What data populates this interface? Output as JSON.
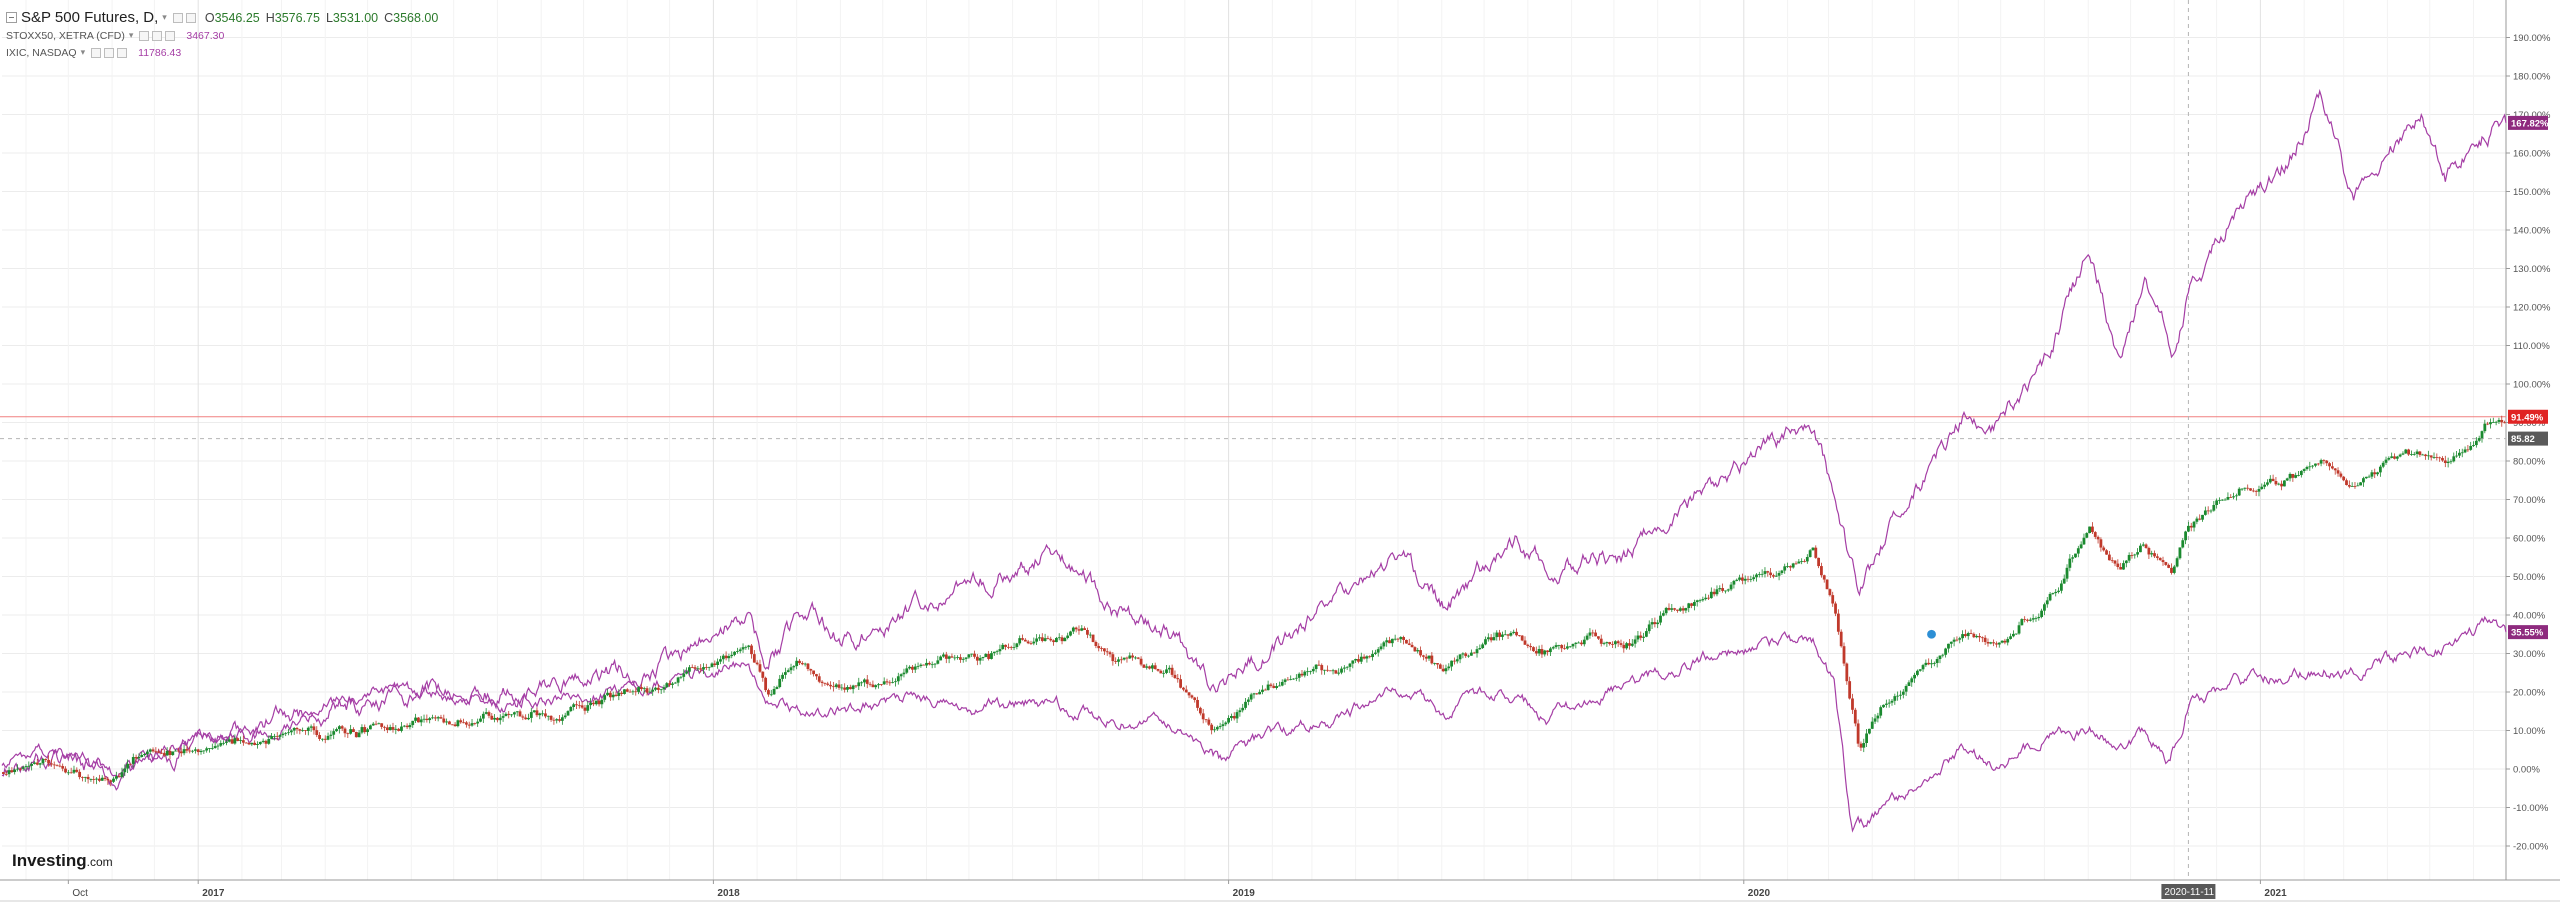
{
  "legend": {
    "main": {
      "name": "S&P 500 Futures, D,",
      "open_key": "O",
      "open": "3546.25",
      "high_key": "H",
      "high": "3576.75",
      "low_key": "L",
      "low": "3531.00",
      "close_key": "C",
      "close": "3568.00"
    },
    "compare": [
      {
        "name": "STOXX50, XETRA (CFD)",
        "value": "3467.30"
      },
      {
        "name": "IXIC, NASDAQ",
        "value": "11786.43"
      }
    ]
  },
  "brand": {
    "name": "Investing",
    "suffix": ".com"
  },
  "colors": {
    "candle_up": "#1b8a2f",
    "candle_down": "#c0392b",
    "compare_line": "#a53ea5",
    "reference_line": "#f08080",
    "grid": "#ececec",
    "axis": "#999999",
    "crosshair_label": "#5a5a5a"
  },
  "chart_data": {
    "type": "line",
    "ylabel": "",
    "y_scale": "percent",
    "ylim": [
      -25,
      197
    ],
    "y_ticks": [
      "-20.00%",
      "-10.00%",
      "0.00%",
      "10.00%",
      "20.00%",
      "30.00%",
      "40.00%",
      "50.00%",
      "60.00%",
      "70.00%",
      "80.00%",
      "90.00%",
      "100.00%",
      "110.00%",
      "120.00%",
      "130.00%",
      "140.00%",
      "150.00%",
      "160.00%",
      "170.00%",
      "180.00%",
      "190.00%"
    ],
    "x_ticks": [
      {
        "label": "Oct",
        "date": "2016-10-01"
      },
      {
        "label": "2017",
        "date": "2017-01-01"
      },
      {
        "label": "2018",
        "date": "2018-01-01"
      },
      {
        "label": "2019",
        "date": "2019-01-01"
      },
      {
        "label": "2020",
        "date": "2020-01-01"
      },
      {
        "label": "2021",
        "date": "2021-01-01"
      }
    ],
    "x_range": [
      "2016-08-15",
      "2021-06-24"
    ],
    "reference_line": {
      "value": 91.49,
      "label": "91.49%"
    },
    "crosshair": {
      "date": "2020-11-11",
      "date_label": "2020-11-11",
      "value": 85.82,
      "value_label": "85.82"
    },
    "series": [
      {
        "name": "S&P 500 Futures",
        "style": "candles",
        "last_label": "91.49%",
        "points": [
          [
            "2016-08-15",
            0
          ],
          [
            "2016-09-15",
            2
          ],
          [
            "2016-10-15",
            -2
          ],
          [
            "2016-11-05",
            -3
          ],
          [
            "2016-11-20",
            3
          ],
          [
            "2016-12-15",
            5
          ],
          [
            "2017-01-15",
            6
          ],
          [
            "2017-03-01",
            9
          ],
          [
            "2017-04-15",
            9
          ],
          [
            "2017-06-01",
            12
          ],
          [
            "2017-07-15",
            13
          ],
          [
            "2017-09-01",
            14
          ],
          [
            "2017-10-15",
            18
          ],
          [
            "2017-12-01",
            22
          ],
          [
            "2018-01-26",
            33
          ],
          [
            "2018-02-08",
            20
          ],
          [
            "2018-02-28",
            28
          ],
          [
            "2018-04-02",
            20
          ],
          [
            "2018-05-15",
            24
          ],
          [
            "2018-06-15",
            28
          ],
          [
            "2018-07-15",
            30
          ],
          [
            "2018-08-15",
            33
          ],
          [
            "2018-09-21",
            36
          ],
          [
            "2018-10-11",
            28
          ],
          [
            "2018-11-15",
            27
          ],
          [
            "2018-12-24",
            10
          ],
          [
            "2019-01-15",
            18
          ],
          [
            "2019-02-15",
            24
          ],
          [
            "2019-03-15",
            26
          ],
          [
            "2019-04-30",
            33
          ],
          [
            "2019-06-03",
            26
          ],
          [
            "2019-07-15",
            35
          ],
          [
            "2019-08-15",
            30
          ],
          [
            "2019-09-15",
            34
          ],
          [
            "2019-10-08",
            32
          ],
          [
            "2019-11-15",
            42
          ],
          [
            "2019-12-15",
            46
          ],
          [
            "2020-01-15",
            50
          ],
          [
            "2020-02-19",
            56
          ],
          [
            "2020-03-05",
            42
          ],
          [
            "2020-03-23",
            3
          ],
          [
            "2020-04-10",
            18
          ],
          [
            "2020-05-01",
            25
          ],
          [
            "2020-06-08",
            35
          ],
          [
            "2020-06-26",
            32
          ],
          [
            "2020-08-01",
            42
          ],
          [
            "2020-09-02",
            63
          ],
          [
            "2020-09-23",
            52
          ],
          [
            "2020-10-12",
            58
          ],
          [
            "2020-10-30",
            51
          ],
          [
            "2020-11-11",
            63
          ],
          [
            "2020-12-15",
            72
          ],
          [
            "2021-01-15",
            75
          ],
          [
            "2021-02-15",
            80
          ],
          [
            "2021-03-04",
            74
          ],
          [
            "2021-04-15",
            82
          ],
          [
            "2021-05-12",
            79
          ],
          [
            "2021-06-10",
            90
          ],
          [
            "2021-06-24",
            91.49
          ]
        ]
      },
      {
        "name": "STOXX50, XETRA (CFD)",
        "style": "line",
        "last_label": "35.55%",
        "points": [
          [
            "2016-08-15",
            2
          ],
          [
            "2016-09-15",
            5
          ],
          [
            "2016-10-15",
            3
          ],
          [
            "2016-11-05",
            -1
          ],
          [
            "2016-12-15",
            6
          ],
          [
            "2017-01-15",
            8
          ],
          [
            "2017-03-01",
            12
          ],
          [
            "2017-05-05",
            21
          ],
          [
            "2017-06-15",
            19
          ],
          [
            "2017-08-15",
            17
          ],
          [
            "2017-10-15",
            20
          ],
          [
            "2017-11-15",
            22
          ],
          [
            "2018-01-23",
            27
          ],
          [
            "2018-02-09",
            18
          ],
          [
            "2018-03-23",
            14
          ],
          [
            "2018-05-15",
            19
          ],
          [
            "2018-06-29",
            15
          ],
          [
            "2018-08-15",
            18
          ],
          [
            "2018-10-11",
            13
          ],
          [
            "2018-11-15",
            12
          ],
          [
            "2018-12-27",
            2
          ],
          [
            "2019-01-15",
            6
          ],
          [
            "2019-02-15",
            10
          ],
          [
            "2019-03-15",
            13
          ],
          [
            "2019-04-30",
            20
          ],
          [
            "2019-06-03",
            15
          ],
          [
            "2019-07-15",
            21
          ],
          [
            "2019-08-15",
            13
          ],
          [
            "2019-09-15",
            18
          ],
          [
            "2019-10-15",
            22
          ],
          [
            "2019-11-15",
            27
          ],
          [
            "2019-12-15",
            30
          ],
          [
            "2020-01-15",
            32
          ],
          [
            "2020-02-19",
            33
          ],
          [
            "2020-03-05",
            22
          ],
          [
            "2020-03-18",
            -18
          ],
          [
            "2020-04-10",
            -10
          ],
          [
            "2020-05-01",
            -5
          ],
          [
            "2020-06-08",
            5
          ],
          [
            "2020-06-26",
            0
          ],
          [
            "2020-08-01",
            8
          ],
          [
            "2020-09-02",
            11
          ],
          [
            "2020-09-23",
            6
          ],
          [
            "2020-10-12",
            10
          ],
          [
            "2020-10-29",
            2
          ],
          [
            "2020-11-11",
            17
          ],
          [
            "2020-12-15",
            22
          ],
          [
            "2021-01-15",
            24
          ],
          [
            "2021-02-15",
            27
          ],
          [
            "2021-03-04",
            24
          ],
          [
            "2021-04-15",
            30
          ],
          [
            "2021-05-12",
            32
          ],
          [
            "2021-06-10",
            38
          ],
          [
            "2021-06-24",
            35.55
          ]
        ]
      },
      {
        "name": "IXIC, NASDAQ",
        "style": "line",
        "last_label": "167.82%",
        "points": [
          [
            "2016-08-15",
            0
          ],
          [
            "2016-09-15",
            3
          ],
          [
            "2016-10-15",
            1
          ],
          [
            "2016-11-05",
            -2
          ],
          [
            "2016-12-15",
            4
          ],
          [
            "2017-01-15",
            8
          ],
          [
            "2017-03-01",
            13
          ],
          [
            "2017-05-05",
            18
          ],
          [
            "2017-06-15",
            20
          ],
          [
            "2017-08-15",
            20
          ],
          [
            "2017-10-15",
            24
          ],
          [
            "2017-12-01",
            28
          ],
          [
            "2018-01-26",
            40
          ],
          [
            "2018-02-08",
            28
          ],
          [
            "2018-03-12",
            43
          ],
          [
            "2018-04-02",
            32
          ],
          [
            "2018-05-15",
            40
          ],
          [
            "2018-06-20",
            48
          ],
          [
            "2018-07-15",
            50
          ],
          [
            "2018-08-29",
            56
          ],
          [
            "2018-09-21",
            52
          ],
          [
            "2018-10-11",
            40
          ],
          [
            "2018-11-15",
            38
          ],
          [
            "2018-12-24",
            18
          ],
          [
            "2019-01-15",
            28
          ],
          [
            "2019-02-15",
            36
          ],
          [
            "2019-03-15",
            42
          ],
          [
            "2019-04-30",
            55
          ],
          [
            "2019-06-03",
            43
          ],
          [
            "2019-07-26",
            60
          ],
          [
            "2019-08-15",
            52
          ],
          [
            "2019-09-15",
            56
          ],
          [
            "2019-10-08",
            54
          ],
          [
            "2019-11-15",
            68
          ],
          [
            "2019-12-15",
            75
          ],
          [
            "2020-01-15",
            82
          ],
          [
            "2020-02-19",
            91
          ],
          [
            "2020-03-05",
            72
          ],
          [
            "2020-03-23",
            43
          ],
          [
            "2020-04-10",
            60
          ],
          [
            "2020-05-01",
            72
          ],
          [
            "2020-06-08",
            93
          ],
          [
            "2020-06-26",
            90
          ],
          [
            "2020-08-01",
            105
          ],
          [
            "2020-09-02",
            135
          ],
          [
            "2020-09-23",
            108
          ],
          [
            "2020-10-12",
            128
          ],
          [
            "2020-10-30",
            110
          ],
          [
            "2020-11-11",
            125
          ],
          [
            "2020-12-15",
            145
          ],
          [
            "2021-01-15",
            155
          ],
          [
            "2021-02-12",
            175
          ],
          [
            "2021-03-08",
            148
          ],
          [
            "2021-04-26",
            172
          ],
          [
            "2021-05-12",
            152
          ],
          [
            "2021-06-10",
            165
          ],
          [
            "2021-06-24",
            167.82
          ]
        ]
      }
    ]
  }
}
